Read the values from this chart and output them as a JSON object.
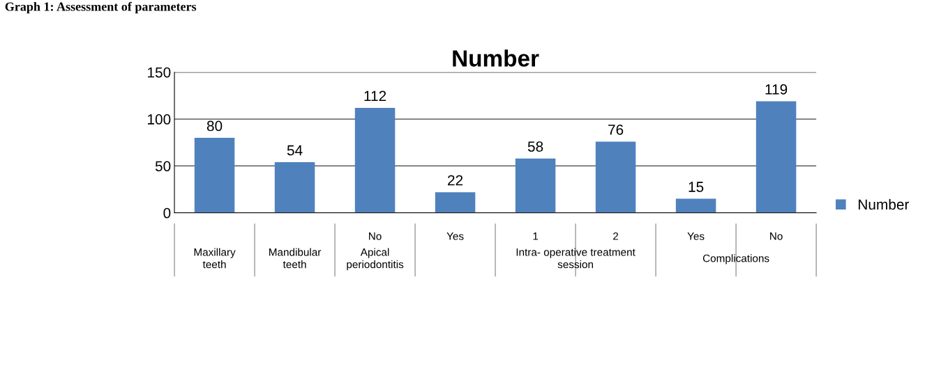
{
  "chart_data": {
    "type": "bar",
    "title": "Number",
    "categories": [
      null,
      null,
      "No",
      "Yes",
      "1",
      "2",
      "Yes",
      "No"
    ],
    "series": [
      {
        "name": "Number",
        "color": "#4f81bd",
        "values": [
          80,
          54,
          112,
          22,
          58,
          76,
          15,
          119
        ]
      }
    ],
    "ylim": [
      0,
      150
    ],
    "yticks": [
      0,
      50,
      100,
      150
    ],
    "grid": "y",
    "legend": "right",
    "data_labels": true,
    "annotations": [
      "Graph 1: Assessment of parameters",
      "Maxillary teeth",
      "Mandibular teeth",
      "Apical periodontitis",
      "Intra- operative treatment session",
      "Complications"
    ]
  }
}
